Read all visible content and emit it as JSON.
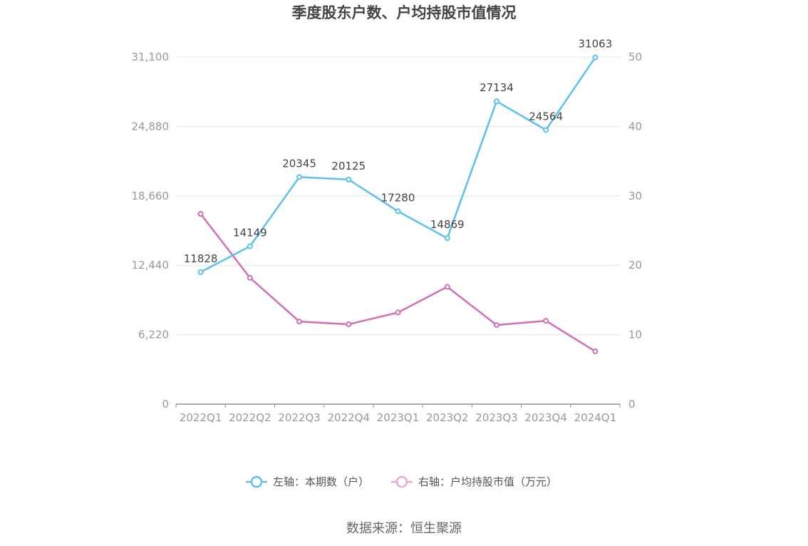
{
  "chart_data": {
    "type": "line",
    "title": "季度股东户数、户均持股市值情况",
    "categories": [
      "2022Q1",
      "2022Q2",
      "2022Q3",
      "2022Q4",
      "2023Q1",
      "2023Q2",
      "2023Q3",
      "2023Q4",
      "2024Q1"
    ],
    "left_axis": {
      "ylim": [
        0,
        31100
      ],
      "ticks": [
        "0",
        "6,220",
        "12,440",
        "18,660",
        "24,880",
        "31,100"
      ]
    },
    "right_axis": {
      "ylim": [
        0,
        50
      ],
      "ticks": [
        "0",
        "10",
        "20",
        "30",
        "40",
        "50"
      ]
    },
    "grid": true,
    "legend_placement": "bottom",
    "series": [
      {
        "name": "左轴：本期数（户）",
        "axis": "left",
        "color": "#5bc0f0",
        "values": [
          11828,
          14149,
          20345,
          20125,
          17280,
          14869,
          27134,
          24564,
          31063
        ],
        "labels": [
          "11828",
          "14149",
          "20345",
          "20125",
          "17280",
          "14869",
          "27134",
          "24564",
          "31063"
        ]
      },
      {
        "name": "右轴：户均持股市值（万元）",
        "axis": "right",
        "color": "#d46db5",
        "legend_color": "#eba6d6",
        "values": [
          27.4,
          18.2,
          11.9,
          11.5,
          13.2,
          16.9,
          11.4,
          12.0,
          7.6
        ]
      }
    ],
    "source": "数据来源：恒生聚源"
  }
}
